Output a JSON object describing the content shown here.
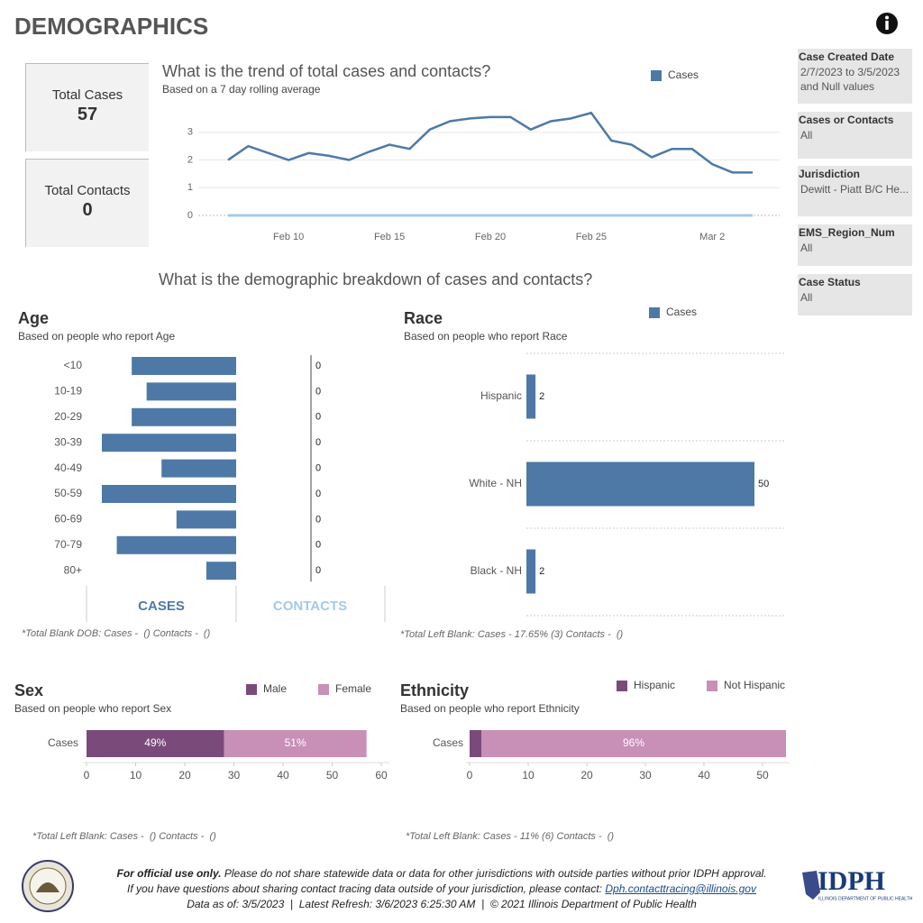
{
  "header": {
    "title": "DEMOGRAPHICS"
  },
  "kpis": [
    {
      "label": "Total Cases",
      "value": 57
    },
    {
      "label": "Total Contacts",
      "value": 0
    }
  ],
  "filters": [
    {
      "label": "Case Created Date",
      "value": "2/7/2023 to 3/5/2023 and Null values"
    },
    {
      "label": "Cases or Contacts",
      "value": "All"
    },
    {
      "label": "Jurisdiction",
      "value": "Dewitt - Piatt B/C He..."
    },
    {
      "label": "EMS_Region_Num",
      "value": "All"
    },
    {
      "label": "Case Status",
      "value": "All"
    }
  ],
  "section_title": "What is the demographic breakdown of cases and contacts?",
  "chart_data": [
    {
      "type": "line",
      "title": "What is the trend of total cases and contacts?",
      "subtitle": "Based on a 7 day rolling average",
      "categories": [
        null,
        null,
        null,
        "Feb 10",
        null,
        null,
        null,
        null,
        "Feb 15",
        null,
        null,
        null,
        null,
        "Feb 20",
        null,
        null,
        null,
        null,
        "Feb 25",
        null,
        null,
        null,
        null,
        null,
        "Mar 2",
        null,
        null
      ],
      "series": [
        {
          "name": "Cases",
          "color": "#4e79a7",
          "values": [
            2.0,
            2.5,
            2.25,
            2.0,
            2.25,
            2.15,
            2.0,
            2.3,
            2.55,
            2.4,
            3.1,
            3.4,
            3.5,
            3.55,
            3.55,
            3.1,
            3.4,
            3.5,
            3.7,
            2.7,
            2.55,
            2.1,
            2.4,
            2.4,
            1.85,
            1.55,
            1.55
          ]
        },
        {
          "color": "#a0cbe8",
          "values": [
            0,
            0,
            0,
            0,
            0,
            0,
            0,
            0,
            0,
            0,
            0,
            0,
            0,
            0,
            0,
            0,
            0,
            0,
            0,
            0,
            0,
            0,
            0,
            0,
            0,
            0,
            0
          ]
        }
      ],
      "ylim": [
        0,
        4
      ],
      "yticks": [
        0,
        1,
        2,
        3
      ],
      "grid": true
    },
    {
      "type": "bar",
      "title": "Age",
      "subtitle": "Based on people who report Age",
      "categories": [
        "<10",
        "10-19",
        "20-29",
        "30-39",
        "40-49",
        "50-59",
        "60-69",
        "70-79",
        "80+"
      ],
      "series": [
        {
          "name": "CASES",
          "color": "#4e79a7",
          "values": [
            7,
            6,
            7,
            9,
            5,
            9,
            4,
            8,
            2
          ]
        },
        {
          "name": "CONTACTS",
          "color": "#a0cbe8",
          "values": [
            0,
            0,
            0,
            0,
            0,
            0,
            0,
            0,
            0
          ]
        }
      ],
      "xlim": [
        0,
        9
      ],
      "note": "*Total Blank DOB: Cases -  () Contacts -  ()"
    },
    {
      "type": "bar",
      "title": "Race",
      "subtitle": "Based on people who report Race",
      "categories": [
        "Hispanic",
        "White - NH",
        "Black - NH"
      ],
      "series": [
        {
          "name": "Cases",
          "color": "#4e79a7",
          "values": [
            2,
            50,
            2
          ]
        }
      ],
      "xlim": [
        0,
        50
      ],
      "note": "*Total Left Blank: Cases - 17.65% (3) Contacts -  ()"
    },
    {
      "type": "stacked_bar",
      "title": "Sex",
      "subtitle": "Based on people who report Sex",
      "categories": [
        "Cases"
      ],
      "series": [
        {
          "name": "Male",
          "color": "#7a4a7a",
          "values": [
            28
          ],
          "percent_labels": [
            "49%"
          ]
        },
        {
          "name": "Female",
          "color": "#c88fb7",
          "values": [
            29
          ],
          "percent_labels": [
            "51%"
          ]
        }
      ],
      "xlim": [
        0,
        60
      ],
      "xticks": [
        0,
        10,
        20,
        30,
        40,
        50,
        60
      ],
      "note": "*Total Left Blank: Cases -  () Contacts -  ()"
    },
    {
      "type": "stacked_bar",
      "title": "Ethnicity",
      "subtitle": "Based on people who report Ethnicity",
      "categories": [
        "Cases"
      ],
      "series": [
        {
          "name": "Hispanic",
          "color": "#7a4a7a",
          "values": [
            2
          ]
        },
        {
          "name": "Not Hispanic",
          "color": "#c88fb7",
          "values": [
            52
          ],
          "percent_labels": [
            "96%"
          ]
        }
      ],
      "xlim": [
        0,
        53
      ],
      "xticks": [
        0,
        10,
        20,
        30,
        40,
        50
      ],
      "note": "*Total Left Blank: Cases - 11% (6) Contacts -  ()"
    }
  ],
  "footer": {
    "notice_bold": "For official use only.",
    "notice": "Please do not share statewide data or data for other jurisdictions with outside parties without prior IDPH approval.",
    "contact": "If you have questions about sharing contact tracing data outside of your jurisdiction, please contact:",
    "email": "Dph.contacttracing@illinois.gov",
    "refresh": "Data as of: 3/5/2023  |  Latest Refresh: 3/6/2023 6:25:30 AM  |  © 2021 Illinois Department of Public Health",
    "logo": "IDPH",
    "logo_caption": "ILLINOIS DEPARTMENT OF PUBLIC HEALTH"
  }
}
